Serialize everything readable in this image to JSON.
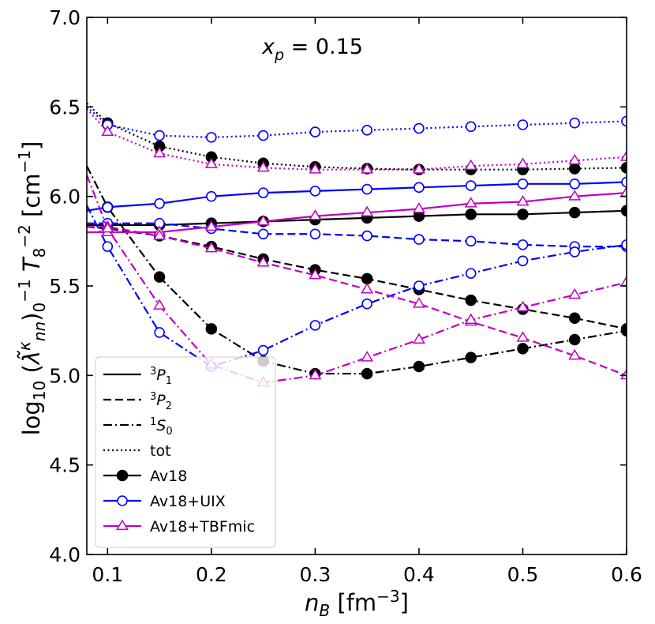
{
  "chart_data": {
    "type": "line",
    "annotation_text": "x_p = 0.15",
    "xlabel": "n_B [fm^-3]",
    "ylabel": "log10 (λ̃κ_nn)_0^-1 T_8^-2 [cm^-1]",
    "xlim": [
      0.08,
      0.6
    ],
    "ylim": [
      4.0,
      7.0
    ],
    "xticks": [
      0.1,
      0.2,
      0.3,
      0.4,
      0.5,
      0.6
    ],
    "xtick_labels": [
      "0.1",
      "0.2",
      "0.3",
      "0.4",
      "0.5",
      "0.6"
    ],
    "yticks": [
      4.0,
      4.5,
      5.0,
      5.5,
      6.0,
      6.5,
      7.0
    ],
    "ytick_labels": [
      "4.0",
      "4.5",
      "5.0",
      "5.5",
      "6.0",
      "6.5",
      "7.0"
    ],
    "legend_position": "lower-left",
    "legend": [
      {
        "label": "3P1",
        "sup": "3",
        "base": "P",
        "sub": "1",
        "style": "solid",
        "color": "#000000",
        "marker": "none"
      },
      {
        "label": "3P2",
        "sup": "3",
        "base": "P",
        "sub": "2",
        "style": "dashed",
        "color": "#000000",
        "marker": "none"
      },
      {
        "label": "1S0",
        "sup": "1",
        "base": "S",
        "sub": "0",
        "style": "dashdot",
        "color": "#000000",
        "marker": "none"
      },
      {
        "label": "tot",
        "style": "dotted",
        "color": "#000000",
        "marker": "none"
      },
      {
        "label": "Av18",
        "style": "solid",
        "color": "#000000",
        "marker": "filled-circle"
      },
      {
        "label": "Av18+UIX",
        "style": "solid",
        "color": "#0000ff",
        "marker": "open-circle"
      },
      {
        "label": "Av18+TBFmic",
        "style": "solid",
        "color": "#c000c0",
        "marker": "open-triangle"
      }
    ],
    "series": [
      {
        "name": "Av18 tot",
        "color": "#000000",
        "style": "dotted",
        "marker": "filled-circle",
        "x": [
          0.08,
          0.1,
          0.15,
          0.2,
          0.25,
          0.3,
          0.35,
          0.4,
          0.45,
          0.5,
          0.55,
          0.6
        ],
        "y": [
          6.52,
          6.41,
          6.28,
          6.22,
          6.185,
          6.165,
          6.155,
          6.15,
          6.15,
          6.15,
          6.155,
          6.16
        ]
      },
      {
        "name": "Av18 3P1",
        "color": "#000000",
        "style": "solid",
        "marker": "filled-circle",
        "x": [
          0.08,
          0.1,
          0.15,
          0.2,
          0.25,
          0.3,
          0.35,
          0.4,
          0.45,
          0.5,
          0.55,
          0.6
        ],
        "y": [
          5.84,
          5.84,
          5.84,
          5.85,
          5.86,
          5.87,
          5.88,
          5.89,
          5.9,
          5.9,
          5.91,
          5.92
        ]
      },
      {
        "name": "Av18 3P2",
        "color": "#000000",
        "style": "dashed",
        "marker": "filled-circle",
        "x": [
          0.08,
          0.1,
          0.15,
          0.2,
          0.25,
          0.3,
          0.35,
          0.4,
          0.45,
          0.5,
          0.55,
          0.6
        ],
        "y": [
          5.83,
          5.82,
          5.78,
          5.72,
          5.65,
          5.59,
          5.54,
          5.48,
          5.42,
          5.37,
          5.32,
          5.26
        ]
      },
      {
        "name": "Av18 1S0",
        "color": "#000000",
        "style": "dashdot",
        "marker": "filled-circle",
        "x": [
          0.08,
          0.1,
          0.15,
          0.2,
          0.25,
          0.3,
          0.35,
          0.4,
          0.45,
          0.5,
          0.55,
          0.6
        ],
        "y": [
          6.17,
          5.94,
          5.55,
          5.26,
          5.08,
          5.01,
          5.01,
          5.05,
          5.1,
          5.15,
          5.2,
          5.25
        ]
      },
      {
        "name": "Av18+UIX tot",
        "color": "#0000ff",
        "style": "dotted",
        "marker": "open-circle",
        "x": [
          0.08,
          0.1,
          0.15,
          0.2,
          0.25,
          0.3,
          0.35,
          0.4,
          0.45,
          0.5,
          0.55,
          0.6
        ],
        "y": [
          6.5,
          6.4,
          6.34,
          6.33,
          6.34,
          6.36,
          6.37,
          6.38,
          6.39,
          6.4,
          6.41,
          6.42
        ]
      },
      {
        "name": "Av18+UIX 3P1",
        "color": "#0000ff",
        "style": "solid",
        "marker": "open-circle",
        "x": [
          0.08,
          0.1,
          0.15,
          0.2,
          0.25,
          0.3,
          0.35,
          0.4,
          0.45,
          0.5,
          0.55,
          0.6
        ],
        "y": [
          5.92,
          5.94,
          5.96,
          6.0,
          6.02,
          6.03,
          6.04,
          6.05,
          6.06,
          6.07,
          6.07,
          6.08
        ]
      },
      {
        "name": "Av18+UIX 3P2",
        "color": "#0000ff",
        "style": "dashed",
        "marker": "open-circle",
        "x": [
          0.08,
          0.1,
          0.15,
          0.2,
          0.25,
          0.3,
          0.35,
          0.4,
          0.45,
          0.5,
          0.55,
          0.6
        ],
        "y": [
          5.85,
          5.85,
          5.85,
          5.82,
          5.79,
          5.79,
          5.78,
          5.76,
          5.75,
          5.73,
          5.72,
          5.72
        ]
      },
      {
        "name": "Av18+UIX 1S0",
        "color": "#0000ff",
        "style": "dashdot",
        "marker": "open-circle",
        "x": [
          0.08,
          0.1,
          0.15,
          0.2,
          0.25,
          0.3,
          0.35,
          0.4,
          0.45,
          0.5,
          0.55,
          0.6
        ],
        "y": [
          5.95,
          5.72,
          5.24,
          5.05,
          5.14,
          5.28,
          5.4,
          5.5,
          5.57,
          5.64,
          5.69,
          5.73
        ]
      },
      {
        "name": "Av18+TBFmic tot",
        "color": "#c000c0",
        "style": "dotted",
        "marker": "open-triangle",
        "x": [
          0.08,
          0.1,
          0.15,
          0.2,
          0.25,
          0.3,
          0.35,
          0.4,
          0.45,
          0.5,
          0.55,
          0.6
        ],
        "y": [
          6.49,
          6.36,
          6.24,
          6.18,
          6.16,
          6.15,
          6.15,
          6.15,
          6.17,
          6.18,
          6.2,
          6.22
        ]
      },
      {
        "name": "Av18+TBFmic 3P1",
        "color": "#c000c0",
        "style": "solid",
        "marker": "open-triangle",
        "x": [
          0.08,
          0.1,
          0.15,
          0.2,
          0.25,
          0.3,
          0.35,
          0.4,
          0.45,
          0.5,
          0.55,
          0.6
        ],
        "y": [
          5.8,
          5.8,
          5.8,
          5.83,
          5.86,
          5.89,
          5.91,
          5.93,
          5.96,
          5.97,
          6.0,
          6.02
        ]
      },
      {
        "name": "Av18+TBFmic 3P2",
        "color": "#c000c0",
        "style": "dashed",
        "marker": "open-triangle",
        "x": [
          0.08,
          0.1,
          0.15,
          0.2,
          0.25,
          0.3,
          0.35,
          0.4,
          0.45,
          0.5,
          0.55,
          0.6
        ],
        "y": [
          5.83,
          5.83,
          5.78,
          5.71,
          5.63,
          5.56,
          5.48,
          5.4,
          5.3,
          5.21,
          5.11,
          5.0
        ]
      },
      {
        "name": "Av18+TBFmic 1S0",
        "color": "#c000c0",
        "style": "dashdot",
        "marker": "open-triangle",
        "x": [
          0.08,
          0.1,
          0.15,
          0.2,
          0.25,
          0.3,
          0.35,
          0.4,
          0.45,
          0.5,
          0.55,
          0.6
        ],
        "y": [
          6.12,
          5.82,
          5.39,
          5.06,
          4.96,
          5.0,
          5.1,
          5.2,
          5.31,
          5.38,
          5.45,
          5.52
        ]
      }
    ]
  }
}
